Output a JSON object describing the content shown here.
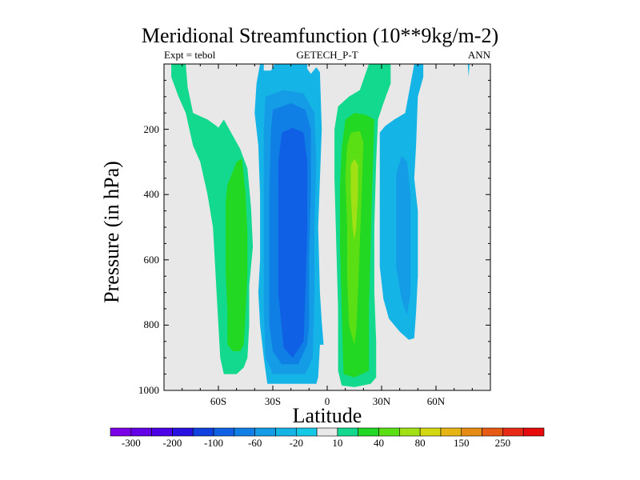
{
  "chart_data": {
    "type": "contour",
    "title": "Meridional Streamfunction (10**9kg/m-2)",
    "subtitle_left": "Expt = tebol",
    "subtitle_center": "GETECH_P-T",
    "subtitle_right": "ANN",
    "xlabel": "Latitude",
    "ylabel": "Pressure (in hPa)",
    "xlim": [
      -90,
      90
    ],
    "ylim": [
      1000,
      0
    ],
    "xticks": [
      {
        "value": -60,
        "label": "60S"
      },
      {
        "value": -30,
        "label": "30S"
      },
      {
        "value": 0,
        "label": "0"
      },
      {
        "value": 30,
        "label": "30N"
      },
      {
        "value": 60,
        "label": "60N"
      }
    ],
    "yticks": [
      {
        "value": 200,
        "label": "200"
      },
      {
        "value": 400,
        "label": "400"
      },
      {
        "value": 600,
        "label": "600"
      },
      {
        "value": 800,
        "label": "800"
      },
      {
        "value": 1000,
        "label": "1000"
      }
    ],
    "colorbar": {
      "levels": [
        -300,
        -250,
        -200,
        -150,
        -100,
        -80,
        -60,
        -40,
        -20,
        -10,
        10,
        20,
        40,
        60,
        80,
        100,
        150,
        200,
        250,
        300
      ],
      "labels": [
        "-300",
        "-200",
        "-100",
        "-60",
        "-20",
        "10",
        "40",
        "80",
        "150",
        "250"
      ],
      "colors": [
        "#7a00e6",
        "#6400e6",
        "#4b00e6",
        "#2a10e0",
        "#1040e0",
        "#1060e6",
        "#0f7fe6",
        "#149de6",
        "#15b4e6",
        "#15c8e6",
        "#e8e8e8",
        "#12d98e",
        "#22d822",
        "#5ade14",
        "#a0e014",
        "#d4d810",
        "#e6b414",
        "#e68c14",
        "#e65a14",
        "#e62a14",
        "#e60a0a"
      ]
    },
    "regions": [
      {
        "name": "sh-ferrel-cell",
        "value": 20,
        "color": "#12d98e",
        "points": [
          [
            -86,
            0
          ],
          [
            -78,
            0
          ],
          [
            -77,
            70
          ],
          [
            -74,
            150
          ],
          [
            -66,
            170
          ],
          [
            -61,
            190
          ],
          [
            -60,
            195
          ],
          [
            -57,
            170
          ],
          [
            -48,
            260
          ],
          [
            -44,
            320
          ],
          [
            -42,
            440
          ],
          [
            -41,
            560
          ],
          [
            -43,
            680
          ],
          [
            -43,
            800
          ],
          [
            -44,
            900
          ],
          [
            -46,
            930
          ],
          [
            -50,
            950
          ],
          [
            -57,
            950
          ],
          [
            -59,
            900
          ],
          [
            -60,
            800
          ],
          [
            -61,
            700
          ],
          [
            -62,
            600
          ],
          [
            -63,
            500
          ],
          [
            -66,
            400
          ],
          [
            -70,
            300
          ],
          [
            -74,
            250
          ],
          [
            -76,
            200
          ],
          [
            -78,
            150
          ],
          [
            -82,
            100
          ],
          [
            -86,
            40
          ]
        ]
      },
      {
        "name": "sh-ferrel-core",
        "value": 40,
        "color": "#22d822",
        "points": [
          [
            -55,
            370
          ],
          [
            -50,
            300
          ],
          [
            -47,
            290
          ],
          [
            -45,
            400
          ],
          [
            -44,
            520
          ],
          [
            -44,
            640
          ],
          [
            -45,
            760
          ],
          [
            -46,
            860
          ],
          [
            -48,
            880
          ],
          [
            -52,
            880
          ],
          [
            -55,
            860
          ],
          [
            -55,
            760
          ],
          [
            -56,
            640
          ],
          [
            -56,
            520
          ],
          [
            -56,
            420
          ]
        ]
      },
      {
        "name": "sh-hadley-cell",
        "value": -20,
        "color": "#15b4e6",
        "points": [
          [
            -37,
            0
          ],
          [
            -35,
            0
          ],
          [
            -35,
            20
          ],
          [
            -31,
            20
          ],
          [
            -29,
            0
          ],
          [
            -11,
            0
          ],
          [
            -11,
            15
          ],
          [
            -9,
            30
          ],
          [
            -6,
            10
          ],
          [
            -4,
            25
          ],
          [
            -3,
            200
          ],
          [
            -5,
            500
          ],
          [
            -4,
            700
          ],
          [
            -3,
            790
          ],
          [
            -2,
            860
          ],
          [
            -4,
            860
          ],
          [
            -5,
            960
          ],
          [
            -6,
            980
          ],
          [
            -33,
            980
          ],
          [
            -35,
            900
          ],
          [
            -37,
            800
          ],
          [
            -38,
            700
          ],
          [
            -37,
            600
          ],
          [
            -37,
            400
          ],
          [
            -38,
            250
          ],
          [
            -40,
            150
          ],
          [
            -39,
            60
          ]
        ]
      },
      {
        "name": "sh-hadley-mid",
        "value": -40,
        "color": "#149de6",
        "points": [
          [
            -34,
            100
          ],
          [
            -24,
            80
          ],
          [
            -13,
            90
          ],
          [
            -7,
            150
          ],
          [
            -6,
            300
          ],
          [
            -7,
            500
          ],
          [
            -7,
            700
          ],
          [
            -8,
            900
          ],
          [
            -12,
            950
          ],
          [
            -30,
            950
          ],
          [
            -34,
            900
          ],
          [
            -35,
            750
          ],
          [
            -35,
            550
          ],
          [
            -35,
            350
          ],
          [
            -35,
            200
          ]
        ]
      },
      {
        "name": "sh-hadley-strong",
        "value": -60,
        "color": "#0f7fe6",
        "points": [
          [
            -30,
            140
          ],
          [
            -20,
            120
          ],
          [
            -12,
            140
          ],
          [
            -9,
            200
          ],
          [
            -9,
            400
          ],
          [
            -10,
            600
          ],
          [
            -10,
            800
          ],
          [
            -11,
            860
          ],
          [
            -16,
            920
          ],
          [
            -25,
            920
          ],
          [
            -30,
            880
          ],
          [
            -32,
            800
          ],
          [
            -32,
            600
          ],
          [
            -32,
            400
          ],
          [
            -31,
            200
          ]
        ]
      },
      {
        "name": "sh-hadley-core",
        "value": -80,
        "color": "#1060e6",
        "points": [
          [
            -25,
            210
          ],
          [
            -19,
            195
          ],
          [
            -13,
            210
          ],
          [
            -11,
            300
          ],
          [
            -11,
            500
          ],
          [
            -12,
            700
          ],
          [
            -13,
            850
          ],
          [
            -19,
            900
          ],
          [
            -24,
            870
          ],
          [
            -27,
            700
          ],
          [
            -27,
            500
          ],
          [
            -27,
            300
          ]
        ]
      },
      {
        "name": "nh-hadley-cell",
        "value": 20,
        "color": "#12d98e",
        "points": [
          [
            6,
            130
          ],
          [
            12,
            100
          ],
          [
            18,
            80
          ],
          [
            23,
            0
          ],
          [
            35,
            0
          ],
          [
            35,
            60
          ],
          [
            31,
            120
          ],
          [
            28,
            170
          ],
          [
            27,
            300
          ],
          [
            26,
            500
          ],
          [
            26,
            700
          ],
          [
            27,
            850
          ],
          [
            27,
            960
          ],
          [
            24,
            980
          ],
          [
            15,
            990
          ],
          [
            8,
            985
          ],
          [
            6,
            940
          ],
          [
            6,
            750
          ],
          [
            5,
            550
          ],
          [
            4,
            350
          ],
          [
            4,
            200
          ]
        ]
      },
      {
        "name": "nh-hadley-mid",
        "value": 40,
        "color": "#22d822",
        "points": [
          [
            8,
            260
          ],
          [
            10,
            170
          ],
          [
            15,
            150
          ],
          [
            21,
            155
          ],
          [
            26,
            170
          ],
          [
            25,
            350
          ],
          [
            24,
            550
          ],
          [
            23,
            750
          ],
          [
            23,
            940
          ],
          [
            15,
            960
          ],
          [
            9,
            950
          ],
          [
            8,
            750
          ],
          [
            7,
            550
          ],
          [
            7,
            380
          ]
        ]
      },
      {
        "name": "nh-hadley-strong",
        "value": 60,
        "color": "#5ade14",
        "points": [
          [
            11,
            250
          ],
          [
            13,
            210
          ],
          [
            18,
            205
          ],
          [
            20,
            240
          ],
          [
            19,
            400
          ],
          [
            18,
            550
          ],
          [
            17,
            700
          ],
          [
            16,
            820
          ],
          [
            15,
            860
          ],
          [
            12,
            800
          ],
          [
            11,
            650
          ],
          [
            11,
            500
          ],
          [
            10,
            350
          ]
        ]
      },
      {
        "name": "nh-hadley-core",
        "value": 80,
        "color": "#a0e014",
        "points": [
          [
            13,
            310
          ],
          [
            15,
            290
          ],
          [
            17,
            310
          ],
          [
            17,
            400
          ],
          [
            16,
            500
          ],
          [
            15,
            540
          ],
          [
            14,
            500
          ],
          [
            13,
            400
          ]
        ]
      },
      {
        "name": "nh-ferrel-cell",
        "value": -20,
        "color": "#15b4e6",
        "points": [
          [
            29,
            210
          ],
          [
            32,
            190
          ],
          [
            37,
            170
          ],
          [
            43,
            150
          ],
          [
            46,
            60
          ],
          [
            48,
            0
          ],
          [
            53,
            0
          ],
          [
            53,
            40
          ],
          [
            50,
            100
          ],
          [
            49,
            250
          ],
          [
            48,
            350
          ],
          [
            50,
            450
          ],
          [
            50,
            550
          ],
          [
            50,
            650
          ],
          [
            49,
            760
          ],
          [
            48,
            840
          ],
          [
            45,
            845
          ],
          [
            40,
            820
          ],
          [
            34,
            780
          ],
          [
            31,
            720
          ],
          [
            29,
            620
          ],
          [
            29,
            450
          ],
          [
            29,
            320
          ]
        ]
      },
      {
        "name": "nh-ferrel-core",
        "value": -40,
        "color": "#149de6",
        "points": [
          [
            38,
            340
          ],
          [
            41,
            280
          ],
          [
            44,
            300
          ],
          [
            46,
            400
          ],
          [
            46,
            550
          ],
          [
            46,
            700
          ],
          [
            44,
            770
          ],
          [
            41,
            720
          ],
          [
            38,
            620
          ],
          [
            38,
            480
          ]
        ]
      },
      {
        "name": "nh-polar-sliver",
        "value": -20,
        "color": "#15b4e6",
        "points": [
          [
            77.5,
            0
          ],
          [
            78.5,
            0
          ],
          [
            78,
            40
          ]
        ]
      }
    ]
  }
}
